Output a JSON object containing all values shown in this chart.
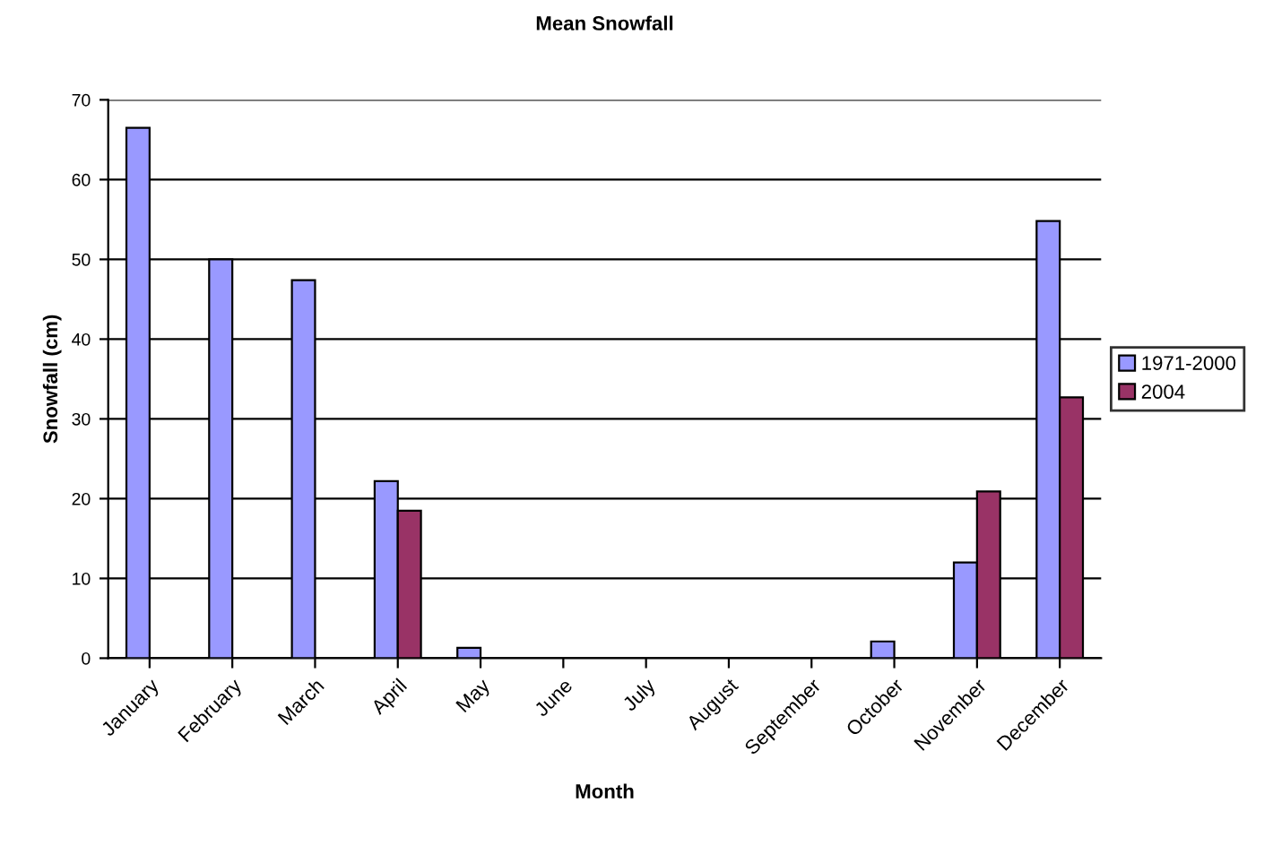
{
  "chart_data": {
    "type": "bar",
    "title": "Mean Snowfall",
    "xlabel": "Month",
    "ylabel": "Snowfall (cm)",
    "categories": [
      "January",
      "February",
      "March",
      "April",
      "May",
      "June",
      "July",
      "August",
      "September",
      "October",
      "November",
      "December"
    ],
    "series": [
      {
        "name": "1971-2000",
        "color": "#9999ff",
        "values": [
          66.5,
          50,
          47.4,
          22.2,
          1.3,
          null,
          null,
          null,
          null,
          2.1,
          12,
          54.8
        ]
      },
      {
        "name": "2004",
        "color": "#993366",
        "values": [
          null,
          null,
          null,
          18.5,
          null,
          null,
          null,
          null,
          null,
          null,
          20.9,
          32.7
        ]
      }
    ],
    "ylim": [
      0,
      70
    ],
    "yticks": [
      0,
      10,
      20,
      30,
      40,
      50,
      60,
      70
    ],
    "grid": "y",
    "legend": "right"
  }
}
